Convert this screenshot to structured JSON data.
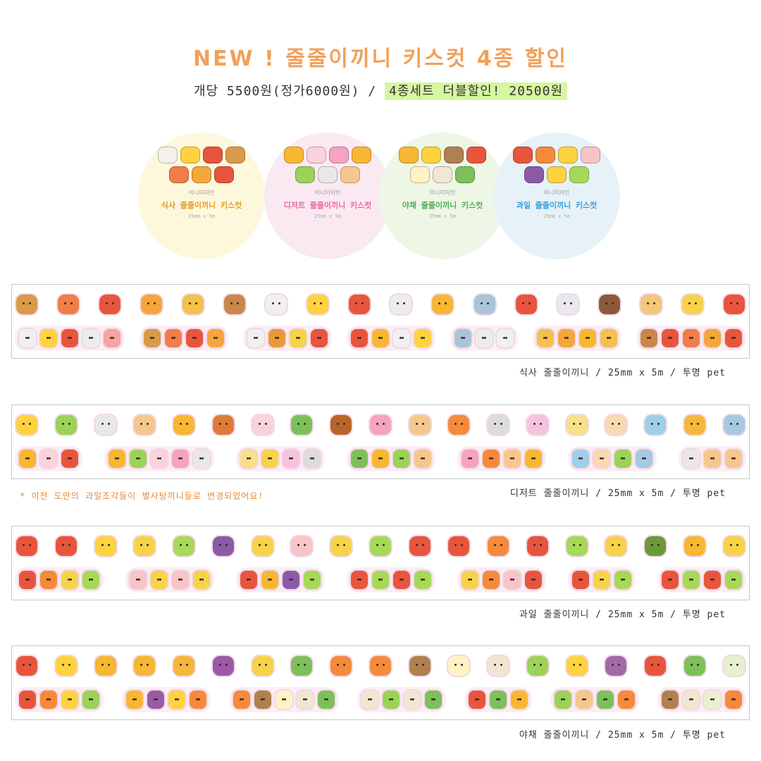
{
  "title": "NEW ! 줄줄이끼니 키스컷 4종 할인",
  "price_line": {
    "single": "개당 5500원(정가6000원) /",
    "set": "4종세트 더블할인! 20500원"
  },
  "products": [
    {
      "brand": "미니미자인",
      "name": "식사 줄줄이끼니 키스컷",
      "size": "25mm x 5m",
      "bg": "#fdf8dc",
      "name_color": "#e39a2e",
      "icon_colors": [
        "#f5f0e8",
        "#ffd23f",
        "#e8553d",
        "#d99a4a",
        "#f07d4a",
        "#f5a63b",
        "#e8553d"
      ]
    },
    {
      "brand": "미니미자인",
      "name": "디저트 줄줄이끼니 키스컷",
      "size": "25mm x 5m",
      "bg": "#fbe9f2",
      "name_color": "#e86aa0",
      "icon_colors": [
        "#f7b733",
        "#f9d3dc",
        "#f5a3c0",
        "#f7b733",
        "#9ad357",
        "#e8e8e8",
        "#f5c78e"
      ]
    },
    {
      "brand": "미니미자인",
      "name": "야채 줄줄이끼니 키스컷",
      "size": "25mm x 5m",
      "bg": "#eef6e6",
      "name_color": "#4caf50",
      "icon_colors": [
        "#f7b733",
        "#ffd23f",
        "#b08050",
        "#e8553d",
        "#fff3c4",
        "#f0e6d2",
        "#7dc05a"
      ]
    },
    {
      "brand": "미니미자인",
      "name": "과일 줄줄이끼니 키스컷",
      "size": "25mm x 5m",
      "bg": "#e6f2f8",
      "name_color": "#3a9ad9",
      "icon_colors": [
        "#e8553d",
        "#f58a3b",
        "#ffd23f",
        "#f9c4c8",
        "#8c5aa8",
        "#ffd23f",
        "#a6d957"
      ]
    }
  ],
  "strips": [
    {
      "caption": "식사 줄줄이끼니 / 25mm x 5m / 투명 pet",
      "row1": [
        "#d99a4a",
        "#f07d4a",
        "#e8553d",
        "#f5a63b",
        "#f2c14e",
        "#c9874a",
        "#f0f0f0",
        "#ffd23f",
        "#e8553d",
        "#ececec",
        "#f7b733",
        "#a9c4d9",
        "#e8553d",
        "#e8e8ee",
        "#8a5a3a",
        "#f2c87a",
        "#f7d34a",
        "#e8553d"
      ],
      "row2_groups": [
        [
          "#f0f0f0",
          "#ffd23f",
          "#e8553d",
          "#ececec",
          "#f5a3a3"
        ],
        [
          "#d99a4a",
          "#f07d4a",
          "#e8553d",
          "#f5a63b"
        ],
        [
          "#f0f0f0",
          "#e89a3a",
          "#f7d34a",
          "#e8553d"
        ],
        [
          "#e8553d",
          "#f7b733",
          "#f0f0f0",
          "#ffd23f"
        ],
        [
          "#a9c4d9",
          "#ececec",
          "#f0f0f0"
        ],
        [
          "#f2c14e",
          "#f5a63b",
          "#f7b733",
          "#f2c14e"
        ],
        [
          "#c9874a",
          "#e8553d",
          "#f07d4a",
          "#f5a63b",
          "#e8553d"
        ]
      ]
    },
    {
      "caption": "디저트 줄줄이끼니 / 25mm x 5m / 투명 pet",
      "row1": [
        "#ffd23f",
        "#9ad357",
        "#e8e8e8",
        "#f5c78e",
        "#f7b733",
        "#e07a3a",
        "#f9d3dc",
        "#7dc05a",
        "#b8642a",
        "#f5a3c0",
        "#f5c78e",
        "#f58a3b",
        "#dcdcdc",
        "#f5c3dd",
        "#f7e08a",
        "#f9d9b0",
        "#9fcfe8",
        "#f5b73b",
        "#a6c9e2"
      ],
      "row2_groups": [
        [
          "#f7b733",
          "#f9d3dc",
          "#e8553d"
        ],
        [
          "#f7b733",
          "#9ad357",
          "#f9d3dc",
          "#f5a3c0",
          "#e8e8e8"
        ],
        [
          "#f7e08a",
          "#f7d34a",
          "#f5c3dd",
          "#dcdcdc"
        ],
        [
          "#7dc05a",
          "#f7b733",
          "#9ad357",
          "#f5c78e"
        ],
        [
          "#f5a3c0",
          "#f58a3b",
          "#f5c78e",
          "#f7b733"
        ],
        [
          "#9fcfe8",
          "#f9d9b0",
          "#9ad357",
          "#a6c9e2"
        ],
        [
          "#e8e8e8",
          "#f5c78e",
          "#f5c78e"
        ]
      ]
    },
    {
      "caption": "과일 줄줄이끼니 / 25mm x 5m / 투명 pet",
      "row1": [
        "#e8553d",
        "#e8553d",
        "#ffd23f",
        "#f7d34a",
        "#a6d957",
        "#8c5aa8",
        "#f7d34a",
        "#f9c4c8",
        "#f7d34a",
        "#a6d957",
        "#e8553d",
        "#e8553d",
        "#f58a3b",
        "#e8553d",
        "#a6d957",
        "#f7d34a",
        "#6a9a3a",
        "#f7b733",
        "#f7d34a"
      ],
      "row2_groups": [
        [
          "#e8553d",
          "#f58a3b",
          "#f7d34a",
          "#a6d957"
        ],
        [
          "#f9c4c8",
          "#f7d34a",
          "#f9c4c8",
          "#f7d34a"
        ],
        [
          "#e8553d",
          "#f7b733",
          "#8c5aa8",
          "#a6d957"
        ],
        [
          "#e8553d",
          "#a6d957",
          "#e8553d",
          "#a6d957"
        ],
        [
          "#f7d34a",
          "#f58a3b",
          "#f9c4c8",
          "#e8553d"
        ],
        [
          "#e8553d",
          "#f7d34a",
          "#a6d957"
        ],
        [
          "#e8553d",
          "#a6d957",
          "#e8553d",
          "#a6d957"
        ]
      ]
    },
    {
      "caption": "야채 줄줄이끼니 / 25mm x 5m / 투명 pet",
      "row1": [
        "#e8553d",
        "#ffd23f",
        "#f7b733",
        "#f7b733",
        "#f5b73b",
        "#9a5aa8",
        "#f7d34a",
        "#7dc05a",
        "#f58a3b",
        "#f58a3b",
        "#b08050",
        "#fff3c4",
        "#f0e6d2",
        "#9ad357",
        "#ffd23f",
        "#a06aa8",
        "#e8553d",
        "#7dc05a",
        "#e8f0d0"
      ],
      "row2_groups": [
        [
          "#e8553d",
          "#f58a3b",
          "#ffd23f",
          "#9ad357"
        ],
        [
          "#f7b733",
          "#9a5aa8",
          "#ffd23f",
          "#f58a3b"
        ],
        [
          "#f58a3b",
          "#b08050",
          "#fff3c4",
          "#f0e6d2",
          "#7dc05a"
        ],
        [
          "#f0e6d2",
          "#9ad357",
          "#f0e6d2",
          "#7dc05a"
        ],
        [
          "#e8553d",
          "#7dc05a",
          "#f7b733"
        ],
        [
          "#9ad357",
          "#f5c78e",
          "#7dc05a",
          "#f58a3b"
        ],
        [
          "#b08050",
          "#f0e6d2",
          "#e8f0d0",
          "#f58a3b"
        ]
      ]
    }
  ],
  "note": "* 이전 도안의 과일조각들이 별사탕끼니들로 변경되었어요!"
}
